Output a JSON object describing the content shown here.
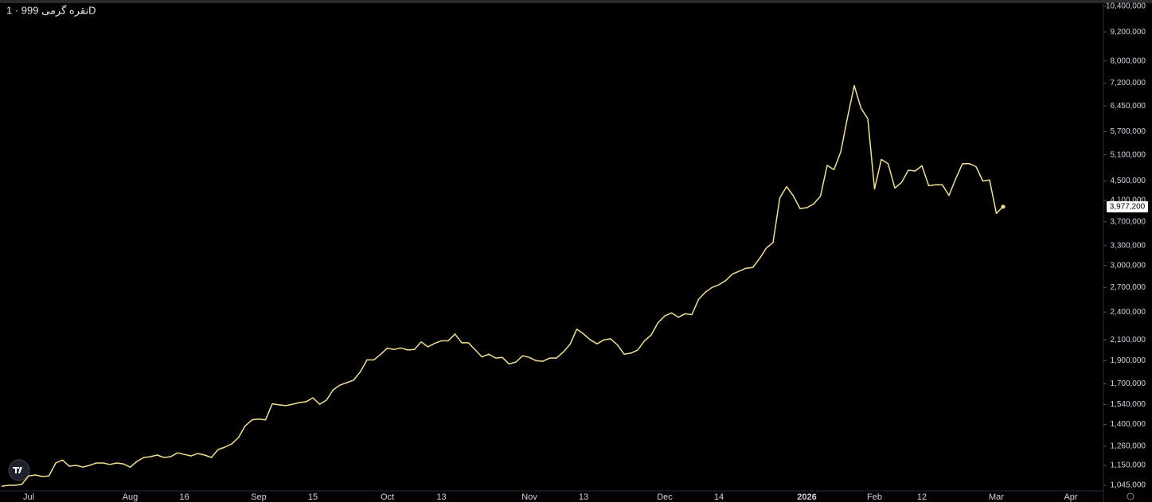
{
  "chart_data": {
    "type": "line",
    "title": "نقره گرمی 999 · 1D",
    "log_scale": true,
    "grid": false,
    "categories": [
      null,
      null,
      null,
      null,
      "Jul",
      null,
      null,
      null,
      null,
      null,
      null,
      null,
      null,
      null,
      null,
      null,
      null,
      null,
      null,
      "Aug",
      null,
      null,
      null,
      null,
      null,
      null,
      null,
      "16",
      null,
      null,
      null,
      null,
      null,
      null,
      null,
      null,
      null,
      null,
      "Sep",
      null,
      null,
      null,
      null,
      null,
      null,
      null,
      "15",
      null,
      null,
      null,
      null,
      null,
      null,
      null,
      null,
      null,
      null,
      "Oct",
      null,
      null,
      null,
      null,
      null,
      null,
      null,
      "13",
      null,
      null,
      null,
      null,
      null,
      null,
      null,
      null,
      null,
      null,
      null,
      null,
      "Nov",
      null,
      null,
      null,
      null,
      null,
      null,
      null,
      "13",
      null,
      null,
      null,
      null,
      null,
      null,
      null,
      null,
      null,
      null,
      null,
      "Dec",
      null,
      null,
      null,
      null,
      null,
      null,
      null,
      "14",
      null,
      null,
      null,
      null,
      null,
      null,
      null,
      null,
      null,
      null,
      null,
      null,
      "2026",
      null,
      null,
      null,
      null,
      null,
      null,
      null,
      null,
      null,
      "Feb",
      null,
      null,
      null,
      null,
      null,
      null,
      "12",
      null,
      null,
      null,
      null,
      null,
      null,
      null,
      null,
      null,
      null,
      "Mar",
      null,
      null,
      null,
      null,
      null,
      null,
      null,
      null,
      null,
      null,
      "Apr",
      null,
      null,
      null,
      null
    ],
    "series": [
      {
        "name": "نقره گرمی 999",
        "color": "#f3e08c",
        "values": [
          1040000,
          1045000,
          1045000,
          1050000,
          1093000,
          1098000,
          1090000,
          1093000,
          1163000,
          1180000,
          1145000,
          1150000,
          1140000,
          1150000,
          1163000,
          1163000,
          1155000,
          1163000,
          1158000,
          1140000,
          1172000,
          1194000,
          1199000,
          1208000,
          1194000,
          1199000,
          1221000,
          1212000,
          1203000,
          1217000,
          1208000,
          1194000,
          1241000,
          1255000,
          1274000,
          1314000,
          1390000,
          1430000,
          1436000,
          1430000,
          1545000,
          1537000,
          1531000,
          1542000,
          1554000,
          1560000,
          1590000,
          1542000,
          1572000,
          1652000,
          1690000,
          1710000,
          1730000,
          1800000,
          1907000,
          1907000,
          1957000,
          2018000,
          2005000,
          2020000,
          2000000,
          2005000,
          2080000,
          2030000,
          2065000,
          2090000,
          2090000,
          2160000,
          2070000,
          2070000,
          2000000,
          1935000,
          1960000,
          1924000,
          1930000,
          1870000,
          1888000,
          1945000,
          1930000,
          1900000,
          1895000,
          1924000,
          1924000,
          1980000,
          2055000,
          2210000,
          2160000,
          2100000,
          2060000,
          2100000,
          2110000,
          2050000,
          1960000,
          1970000,
          2000000,
          2090000,
          2150000,
          2280000,
          2355000,
          2390000,
          2340000,
          2380000,
          2370000,
          2550000,
          2640000,
          2700000,
          2735000,
          2790000,
          2880000,
          2920000,
          2960000,
          2970000,
          3100000,
          3260000,
          3350000,
          4150000,
          4380000,
          4190000,
          3940000,
          3960000,
          4030000,
          4180000,
          4850000,
          4750000,
          5170000,
          6100000,
          7110000,
          6380000,
          6070000,
          4330000,
          4990000,
          4890000,
          4350000,
          4470000,
          4740000,
          4720000,
          4840000,
          4400000,
          4420000,
          4420000,
          4200000,
          4550000,
          4890000,
          4890000,
          4820000,
          4500000,
          4520000,
          3850000,
          3977200,
          null,
          null,
          null,
          null,
          null,
          null,
          null,
          null,
          null,
          null,
          null,
          null,
          null,
          null
        ]
      }
    ],
    "last_price_label": "3,977,200",
    "ylim": [
      1045000,
      10400000
    ],
    "yticks": [
      {
        "value": 10400000,
        "label": "10,400,000"
      },
      {
        "value": 9200000,
        "label": "9,200,000"
      },
      {
        "value": 8000000,
        "label": "8,000,000"
      },
      {
        "value": 7200000,
        "label": "7,200,000"
      },
      {
        "value": 6450000,
        "label": "6,450,000"
      },
      {
        "value": 5700000,
        "label": "5,700,000"
      },
      {
        "value": 5100000,
        "label": "5,100,000"
      },
      {
        "value": 4500000,
        "label": "4,500,000"
      },
      {
        "value": 4100000,
        "label": "4,100,000"
      },
      {
        "value": 3700000,
        "label": "3,700,000"
      },
      {
        "value": 3300000,
        "label": "3,300,000"
      },
      {
        "value": 3000000,
        "label": "3,000,000"
      },
      {
        "value": 2700000,
        "label": "2,700,000"
      },
      {
        "value": 2400000,
        "label": "2,400,000"
      },
      {
        "value": 2100000,
        "label": "2,100,000"
      },
      {
        "value": 1900000,
        "label": "1,900,000"
      },
      {
        "value": 1700000,
        "label": "1,700,000"
      },
      {
        "value": 1540000,
        "label": "1,540,000"
      },
      {
        "value": 1400000,
        "label": "1,400,000"
      },
      {
        "value": 1260000,
        "label": "1,260,000"
      },
      {
        "value": 1150000,
        "label": "1,150,000"
      },
      {
        "value": 1045000,
        "label": "1,045,000"
      }
    ]
  }
}
